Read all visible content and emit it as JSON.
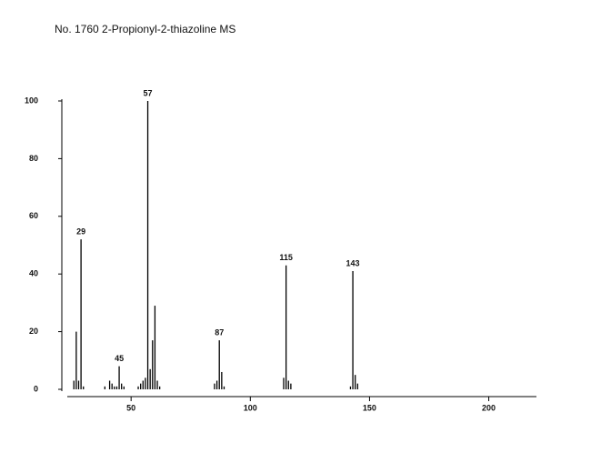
{
  "chart_data": {
    "type": "bar",
    "title": "No. 1760 2-Propionyl-2-thiazoline MS",
    "x": [
      26,
      27,
      28,
      29,
      30,
      39,
      41,
      42,
      43,
      44,
      45,
      46,
      47,
      53,
      54,
      55,
      56,
      57,
      58,
      59,
      60,
      61,
      62,
      85,
      86,
      87,
      88,
      89,
      114,
      115,
      116,
      117,
      142,
      143,
      144,
      145
    ],
    "values": [
      3,
      20,
      3,
      52,
      1,
      1,
      3,
      2,
      1,
      1,
      8,
      2,
      1,
      1,
      2,
      3,
      4,
      100,
      7,
      17,
      29,
      3,
      1,
      2,
      3,
      17,
      6,
      1,
      4,
      43,
      3,
      2,
      1,
      41,
      5,
      2
    ],
    "peak_labels": [
      29,
      45,
      57,
      87,
      115,
      143
    ],
    "color": "#000000",
    "xlim": [
      24,
      220
    ],
    "xticks": [
      50,
      100,
      150,
      200
    ],
    "ylim": [
      0,
      100
    ],
    "yticks": [
      0,
      20,
      40,
      60,
      80,
      100
    ]
  }
}
